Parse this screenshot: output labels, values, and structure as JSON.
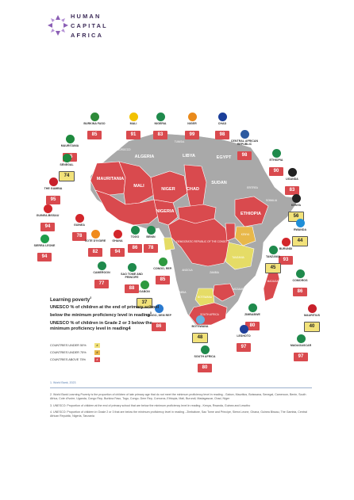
{
  "brand": {
    "line1": "HUMAN",
    "line2": "CAPITAL",
    "line3": "AFRICA"
  },
  "map_labels": {
    "algeria": "ALGERIA",
    "libya": "LIBYA",
    "egypt": "EGYPT",
    "tunisia": "TUNISIA",
    "morocco": "MOROCCO",
    "mauritania": "MAURITANIA",
    "mali": "MALI",
    "niger": "NIGER",
    "chad": "CHAD",
    "sudan": "SUDAN",
    "eritrea": "ERITREA",
    "ethiopia": "ETHIOPIA",
    "somalia": "SOMALIA",
    "nigeria": "NIGERIA",
    "kenya": "KENYA",
    "drc": "DEMOCRATIC REPUBLIC OF THE CONGO",
    "tanzania": "TANZANIA",
    "angola": "ANGOLA",
    "namibia": "NAMIBIA",
    "botswana": "BOTSWANA",
    "south_africa": "SOUTH AFRICA",
    "madagascar": "MADAGASCAR",
    "zambia": "ZAMBIA",
    "mozambique": "MOZAMBIQUE"
  },
  "countries": [
    {
      "name": "BURKINA FASO",
      "value": "85",
      "level": "red",
      "flag": "#2e8b3a"
    },
    {
      "name": "MALI",
      "value": "91",
      "level": "red",
      "flag": "#f2c200"
    },
    {
      "name": "NIGERIA",
      "value": "83",
      "level": "red",
      "flag": "#1f8a4c"
    },
    {
      "name": "NIGER",
      "value": "99",
      "level": "red",
      "flag": "#e98a1b"
    },
    {
      "name": "CHAD",
      "value": "98",
      "level": "red",
      "flag": "#1b3f9a"
    },
    {
      "name": "CENTRAL AFRICAN REPUBLIC",
      "value": "98",
      "level": "red",
      "flag": "#2c5aa0"
    },
    {
      "name": "MAURITANIA",
      "value": "95",
      "level": "red",
      "flag": "#1e8a3e"
    },
    {
      "name": "SENEGAL",
      "value": "74",
      "level": "yel",
      "flag": "#1d8b3f"
    },
    {
      "name": "THE GAMBIA",
      "value": "95",
      "level": "red",
      "flag": "#c8202b"
    },
    {
      "name": "GUINEA-BISSAU",
      "value": "94",
      "level": "red",
      "flag": "#d3262b"
    },
    {
      "name": "GUINEA",
      "value": "78",
      "level": "red",
      "flag": "#d3262b"
    },
    {
      "name": "SIERRA LEONE",
      "value": "94",
      "level": "red",
      "flag": "#1f9d4a"
    },
    {
      "name": "COTE D'IVOIRE",
      "value": "82",
      "level": "red",
      "flag": "#f08a1b"
    },
    {
      "name": "GHANA",
      "value": "94",
      "level": "red",
      "flag": "#d3262b"
    },
    {
      "name": "TOGO",
      "value": "86",
      "level": "red",
      "flag": "#1f8a4c"
    },
    {
      "name": "BENIN",
      "value": "78",
      "level": "red",
      "flag": "#1f8a4c"
    },
    {
      "name": "CAMEROON",
      "value": "77",
      "level": "red",
      "flag": "#1f8a4c"
    },
    {
      "name": "SAO TOME AND PRINCIPE",
      "value": "88",
      "level": "red",
      "flag": "#1f8a4c"
    },
    {
      "name": "CONGO, REP.",
      "value": "85",
      "level": "red",
      "flag": "#2e9a3f"
    },
    {
      "name": "GABON",
      "value": "37",
      "level": "yel",
      "flag": "#2e9a3f"
    },
    {
      "name": "CONGO, DEM REP",
      "value": "86",
      "level": "red",
      "flag": "#2a7ad0"
    },
    {
      "name": "ETHIOPIA",
      "value": "90",
      "level": "red",
      "flag": "#1f8a4c"
    },
    {
      "name": "UGANDA",
      "value": "83",
      "level": "red",
      "flag": "#222222"
    },
    {
      "name": "KENYA",
      "value": "56",
      "level": "yel",
      "flag": "#222222"
    },
    {
      "name": "RWANDA",
      "value": "44",
      "level": "yel",
      "flag": "#1f8fd8"
    },
    {
      "name": "BURUNDI",
      "value": "93",
      "level": "red",
      "flag": "#d3262b"
    },
    {
      "name": "TANZANIA",
      "value": "45",
      "level": "yel",
      "flag": "#1f8a4c"
    },
    {
      "name": "COMOROS",
      "value": "86",
      "level": "red",
      "flag": "#1f8a4c"
    },
    {
      "name": "MAURITIUS",
      "value": "40",
      "level": "yel",
      "flag": "#c8202b"
    },
    {
      "name": "MADAGASCAR",
      "value": "97",
      "level": "red",
      "flag": "#1f8a4c"
    },
    {
      "name": "ZIMBABWE",
      "value": "80",
      "level": "red",
      "flag": "#1f8a4c"
    },
    {
      "name": "BOTSWANA",
      "value": "48",
      "level": "yel",
      "flag": "#6ab3e0"
    },
    {
      "name": "LESHOTO",
      "value": "97",
      "level": "red",
      "flag": "#1f3f9a"
    },
    {
      "name": "SOUTH AFRICA",
      "value": "80",
      "level": "red",
      "flag": "#1f8a4c"
    }
  ],
  "legend": {
    "title": "Learning poverty",
    "title_sup": "2",
    "line2": "UNESCO % of children at the end of primary school below the minimum proficiency level in reading",
    "line2_sup": "3",
    "line3": "UNESCO % of children in Grade 2 or 3 below the minimum proficiency level in reading4",
    "rows": [
      {
        "label": "COUNTRIES UNDER 50%",
        "color": "#f2e27a",
        "mark": "#"
      },
      {
        "label": "COUNTRIES UNDER 75%",
        "color": "#e8b84a",
        "mark": "#"
      },
      {
        "label": "COUNTRIES ABOVE 75%",
        "color": "#d94a4e",
        "mark": "#"
      }
    ]
  },
  "footnotes": [
    "1. World Bank, 2023",
    "2. World Bank Learning Poverty is the proportion of children of late primary age that do not meet the minimum proficiency level in reading - Gabon, Mauritius, Botswana, Senegal, Cameroon, Benin, South Africa, Cote d'Ivoire, Uganda, Congo Rep, Burkina Faso, Togo, Congo- Dem Rep, Comoros, Ethiopia, Mali, Burundi, Madagascar, Chad, Niger",
    "3. UNESCO: Proportion of children at the end of primary school that are below the minimum proficiency level in reading - Kenya, Rwanda, Guinea and Lesotho",
    "4. UNESCO: Proportion of children in Grade 2 or 3 that are below the minimum proficiency level in reading - Zimbabwe, Sao Tome and Principe, Sierra Leone, Ghana, Guinea Bissau, The Gambia, Central African Republic, Nigeria, Tanzania"
  ]
}
